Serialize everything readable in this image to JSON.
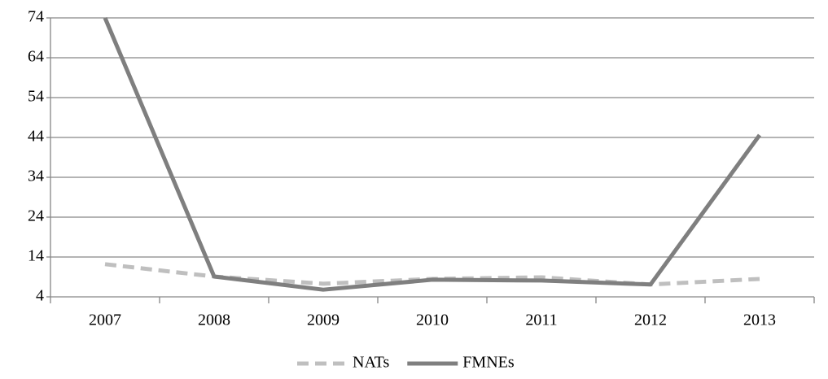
{
  "chart_data": {
    "type": "line",
    "categories": [
      "2007",
      "2008",
      "2009",
      "2010",
      "2011",
      "2012",
      "2013"
    ],
    "series": [
      {
        "name": "NATs",
        "color": "#bfbfbf",
        "dashed": true,
        "values": [
          12.2,
          9.1,
          7.3,
          8.5,
          8.9,
          7.1,
          8.5
        ]
      },
      {
        "name": "FMNEs",
        "color": "#7f7f7f",
        "dashed": false,
        "values": [
          74,
          9.1,
          5.8,
          8.3,
          8.1,
          7.1,
          44.6
        ]
      }
    ],
    "ylim": [
      4,
      74
    ],
    "yticks": [
      4,
      14,
      24,
      34,
      44,
      54,
      64,
      74
    ],
    "grid": true,
    "legend": "bottom"
  }
}
